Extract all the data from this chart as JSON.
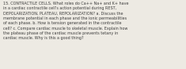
{
  "text": "15. CONTRACTILE CELLS. What roles do Ca++ Na+ and K+ have\nin a cardiac contractile cell’s action potential during REST,\nDEPOLARIZATION, PLATEAU, REPOLARIZATION? a. Discuss the\nmembrane potential in each phase and the ionic permeabilities\nof each phase. b. How is tension generated in the contractile\ncell? c. Compare cardiac muscle to skeletal muscle. Explain how\nthe plateau phase of the cardiac muscle prevents tetany in\ncardiac muscle. Why is this a good thing?",
  "background_color": "#edeae3",
  "text_color": "#3d3d3d",
  "font_size": 3.55,
  "fig_width": 2.35,
  "fig_height": 0.88,
  "dpi": 100
}
